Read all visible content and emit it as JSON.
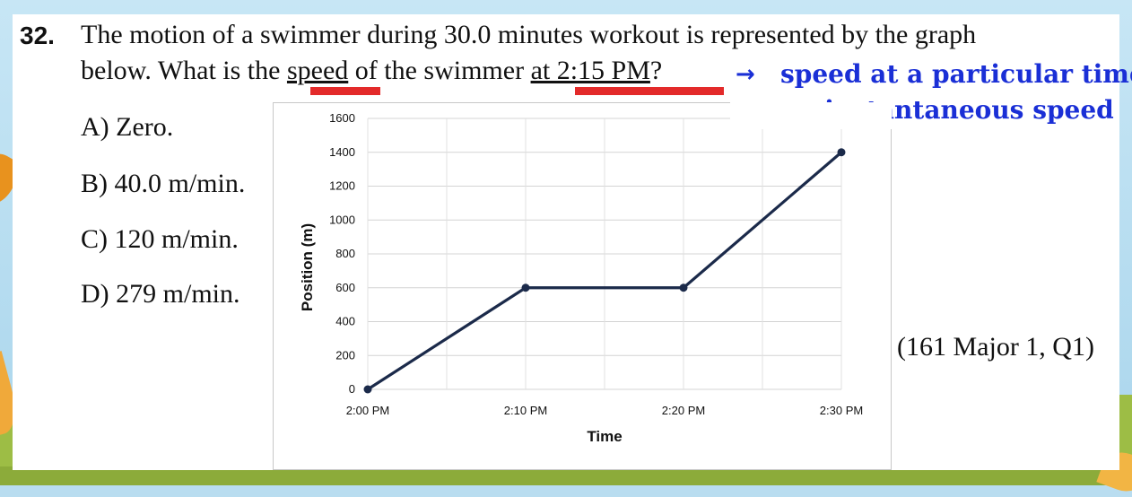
{
  "question": {
    "number": "32.",
    "line1": "The motion of a swimmer during 30.0 minutes workout is represented by the graph",
    "line2_pre": "below. What is the ",
    "line2_speed": "speed",
    "line2_mid": " of the swimmer ",
    "line2_time": "at 2:15 PM",
    "line2_end": "?",
    "options": [
      "A) Zero.",
      "B) 40.0 m/min.",
      "C) 120 m/min.",
      "D) 279 m/min."
    ],
    "source": "(161 Major 1, Q1)"
  },
  "annotation": {
    "arrow": "→",
    "line1": "speed at a particular time",
    "line2": "= instantaneous speed"
  },
  "colors": {
    "annotation": "#1a2fd6",
    "highlight": "#e32a2a",
    "series": "#1b2a4a"
  },
  "chart_data": {
    "type": "line",
    "x": [
      "2:00 PM",
      "2:10 PM",
      "2:20 PM",
      "2:30 PM"
    ],
    "series": [
      {
        "values": [
          0,
          600,
          600,
          1400
        ]
      }
    ],
    "xlabel": "Time",
    "ylabel": "Position (m)",
    "ylim": [
      0,
      1600
    ],
    "yticks": [
      0,
      200,
      400,
      600,
      800,
      1000,
      1200,
      1400,
      1600
    ],
    "grid": true,
    "legend": "none"
  }
}
